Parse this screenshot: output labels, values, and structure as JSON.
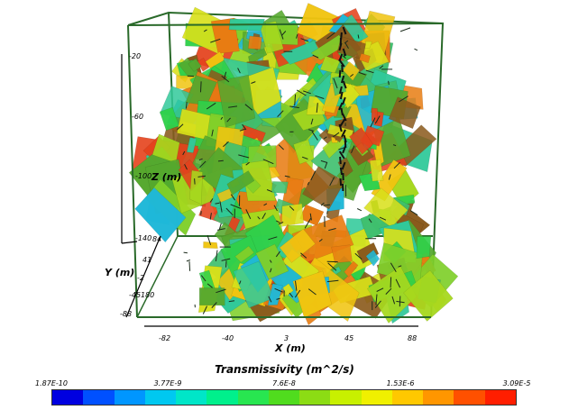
{
  "axes": {
    "z": {
      "title": "Z (m)",
      "ticks": [
        "-20",
        "-60",
        "-100",
        "-140"
      ]
    },
    "y": {
      "title": "Y (m)",
      "ticks": [
        "84",
        "41",
        "-2",
        "-45",
        "-88"
      ]
    },
    "x": {
      "title": "X (m)",
      "ticks": [
        "-82",
        "-40",
        "3",
        "45",
        "88"
      ]
    },
    "corner_label": "180"
  },
  "colorbar": {
    "title": "Transmissivity (m^2/s)",
    "tick_labels": [
      "1.87E-10",
      "3.77E-9",
      "7.6E-8",
      "1.53E-6",
      "3.09E-5"
    ],
    "colors": [
      "#0000e0",
      "#0050ff",
      "#0096ff",
      "#00c8f0",
      "#00e6c8",
      "#00f08c",
      "#28e650",
      "#50dc1e",
      "#8cdc14",
      "#c8f000",
      "#f0f000",
      "#ffc800",
      "#ff9600",
      "#ff5000",
      "#ff1e00"
    ]
  },
  "fracture_colors": [
    "#2fd04a",
    "#7fcf2a",
    "#a6d81e",
    "#e87c12",
    "#8a5a1c",
    "#31c99a",
    "#1fb8d8",
    "#d8e01a",
    "#f0c410",
    "#55a82e",
    "#e4421c",
    "#3fbf6e"
  ]
}
